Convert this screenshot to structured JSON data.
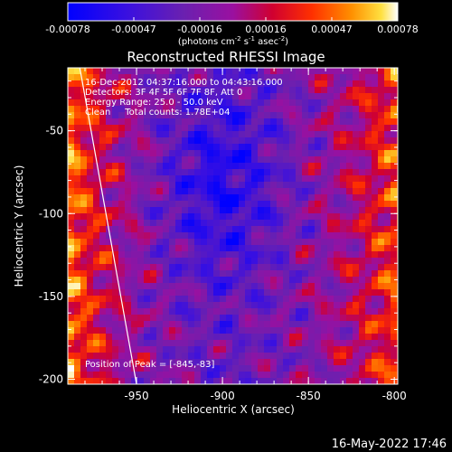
{
  "colorbar": {
    "ticks": [
      "-0.00078",
      "-0.00047",
      "-0.00016",
      "0.00016",
      "0.00047",
      "0.00078"
    ],
    "min": -0.00078,
    "max": 0.00078,
    "unit_label": "(photons cm",
    "unit_sup1": "-2",
    "unit_mid": " s",
    "unit_sup2": "-1",
    "unit_end": " asec",
    "unit_sup3": "-2",
    "unit_close": ")"
  },
  "chart_data": {
    "type": "heatmap",
    "title": "Reconstructed RHESSI Image",
    "xlabel": "Heliocentric X (arcsec)",
    "ylabel": "Heliocentric Y (arcsec)",
    "xlim": [
      -990,
      -798
    ],
    "ylim": [
      -203,
      -12
    ],
    "xticks": [
      -950,
      -900,
      -850,
      -800
    ],
    "xtick_labels": [
      "-950",
      "-900",
      "-850",
      "-800"
    ],
    "yticks": [
      -50,
      -100,
      -150,
      -200
    ],
    "ytick_labels": [
      "-50",
      "-100",
      "-150",
      "-200"
    ],
    "annotations": [
      "16-Dec-2012 04:37:16.000 to 04:43:16.000",
      "Detectors: 3F 4F 5F 6F 7F 8F, Att 0",
      "Energy Range: 25.0 - 50.0 keV",
      "Clean     Total counts: 1.78E+04"
    ],
    "peak_label": "Position of Peak = [-845,-83]",
    "peak": [
      -845,
      -83
    ],
    "limb_line": [
      [
        -983,
        -12
      ],
      [
        -950,
        -203
      ]
    ],
    "colormap": "rainbow-hot (blue-purple-red-orange-yellow-white)"
  },
  "footer": {
    "timestamp": "16-May-2022 17:46"
  }
}
